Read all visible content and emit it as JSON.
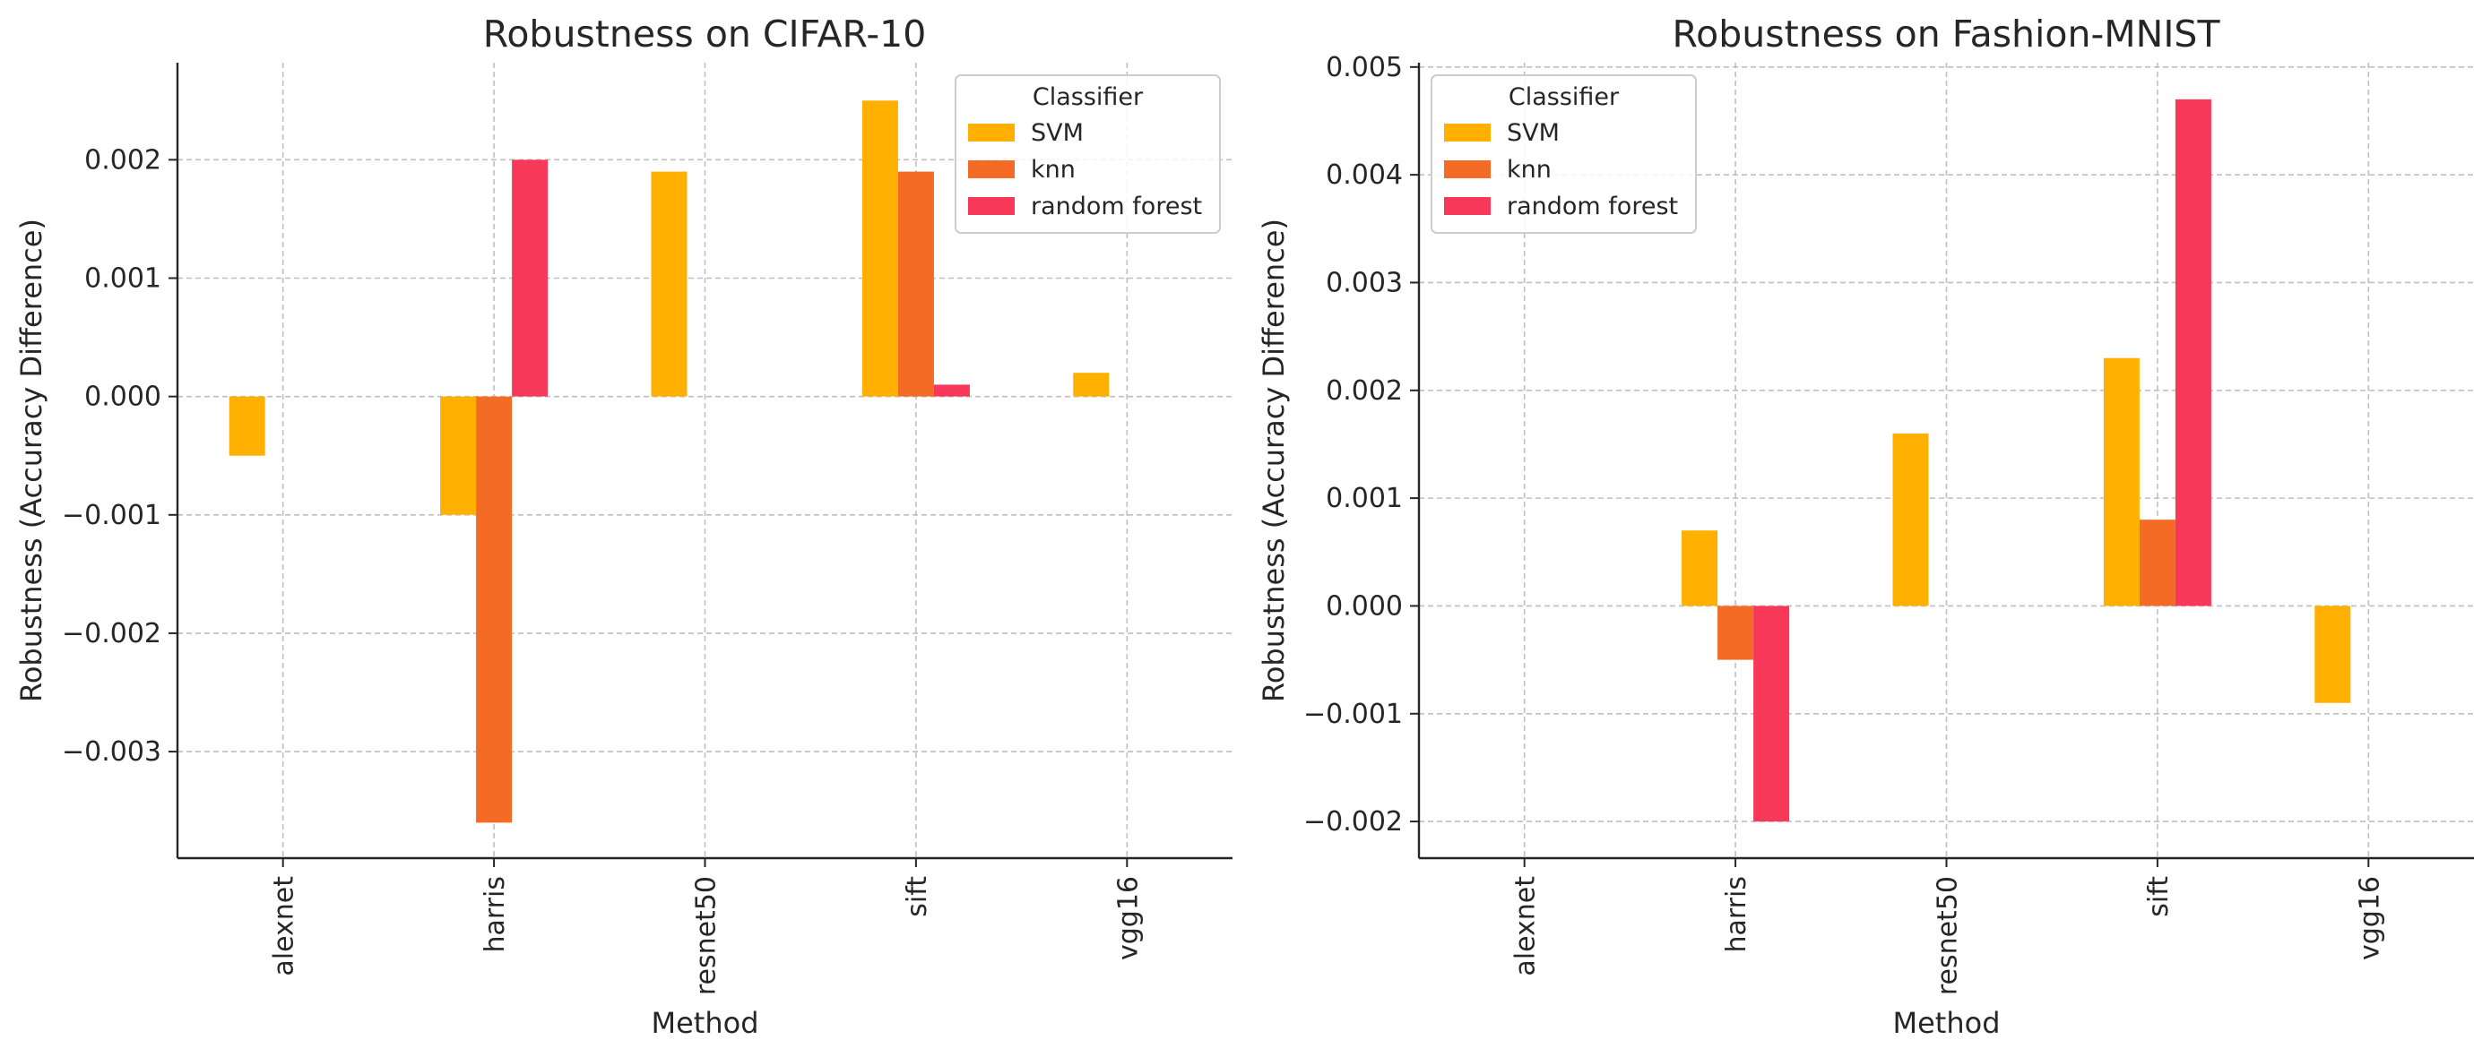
{
  "chart_data": [
    {
      "type": "bar",
      "title": "Robustness on CIFAR-10",
      "xlabel": "Method",
      "ylabel": "Robustness (Accuracy Difference)",
      "categories": [
        "alexnet",
        "harris",
        "resnet50",
        "sift",
        "vgg16"
      ],
      "series": [
        {
          "name": "SVM",
          "color": "#FFB000",
          "values": [
            -0.0005,
            -0.001,
            0.0019,
            0.0025,
            0.0002
          ]
        },
        {
          "name": "knn",
          "color": "#F36B24",
          "values": [
            0,
            -0.0036,
            0,
            0.0019,
            0
          ]
        },
        {
          "name": "random forest",
          "color": "#F73859",
          "values": [
            0,
            0.002,
            0,
            0.0001,
            0
          ]
        }
      ],
      "ylim": [
        -0.0039,
        0.00282
      ],
      "yticks": [
        -0.003,
        -0.002,
        -0.001,
        0.0,
        0.001,
        0.002
      ],
      "ytick_labels": [
        "−0.003",
        "−0.002",
        "−0.001",
        "0.000",
        "0.001",
        "0.002"
      ],
      "grid": true,
      "legend": {
        "title": "Classifier",
        "placement": "top-right"
      }
    },
    {
      "type": "bar",
      "title": "Robustness on Fashion-MNIST",
      "xlabel": "Method",
      "ylabel": "Robustness (Accuracy Difference)",
      "categories": [
        "alexnet",
        "harris",
        "resnet50",
        "sift",
        "vgg16"
      ],
      "series": [
        {
          "name": "SVM",
          "color": "#FFB000",
          "values": [
            0,
            0.0007,
            0.0016,
            0.0023,
            -0.0009
          ]
        },
        {
          "name": "knn",
          "color": "#F36B24",
          "values": [
            0,
            -0.0005,
            0,
            0.0008,
            0
          ]
        },
        {
          "name": "random forest",
          "color": "#F73859",
          "values": [
            0,
            -0.002,
            0,
            0.0047,
            0
          ]
        }
      ],
      "ylim": [
        -0.00234,
        0.00504
      ],
      "yticks": [
        -0.002,
        -0.001,
        0.0,
        0.001,
        0.002,
        0.003,
        0.004,
        0.005
      ],
      "ytick_labels": [
        "−0.002",
        "−0.001",
        "0.000",
        "0.001",
        "0.002",
        "0.003",
        "0.004",
        "0.005"
      ],
      "grid": true,
      "legend": {
        "title": "Classifier",
        "placement": "top-left"
      }
    }
  ]
}
